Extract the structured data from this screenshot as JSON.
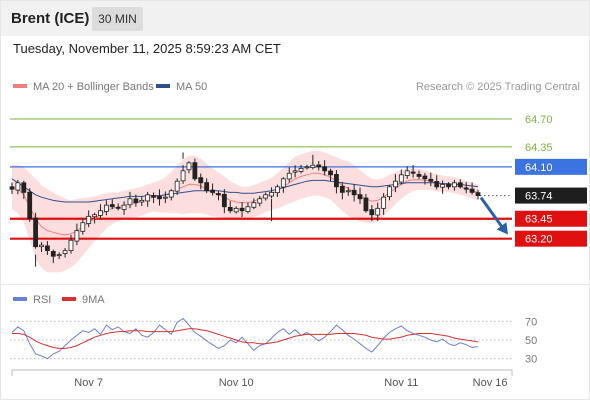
{
  "header": {
    "title": "Brent (ICE)",
    "interval": "30 MIN",
    "datetime": "Tuesday, November 11, 2025 8:59:23 AM CET"
  },
  "legend": {
    "ma20": "MA 20 + Bollinger Bands",
    "ma50": "MA 50",
    "copyright": "Research © 2025 Trading Central",
    "rsi": "RSI",
    "ma9": "9MA"
  },
  "colors": {
    "ma20": "#f08080",
    "bands": "#fcdede",
    "ma50": "#2f4f8f",
    "resistance": "#7cb342",
    "pivot": "#3b73e0",
    "support": "#e01010",
    "arrow": "#2a5faa",
    "rsi": "#6a7fd8",
    "rsi_ma": "#d83030"
  },
  "chart_data": [
    {
      "type": "candlestick",
      "ylim": [
        62.72,
        64.95
      ],
      "current_price": 63.74,
      "levels": [
        {
          "label": "64.70",
          "value": 64.7,
          "kind": "resistance"
        },
        {
          "label": "64.35",
          "value": 64.35,
          "kind": "resistance"
        },
        {
          "label": "64.10",
          "value": 64.1,
          "kind": "pivot"
        },
        {
          "label": "63.74",
          "value": 63.74,
          "kind": "current"
        },
        {
          "label": "63.45",
          "value": 63.45,
          "kind": "support"
        },
        {
          "label": "63.20",
          "value": 63.2,
          "kind": "support"
        }
      ],
      "close_path": [
        63.82,
        63.9,
        63.78,
        63.45,
        63.1,
        63.12,
        63.05,
        62.98,
        63.0,
        63.05,
        63.18,
        63.3,
        63.4,
        63.48,
        63.5,
        63.55,
        63.62,
        63.6,
        63.58,
        63.62,
        63.7,
        63.65,
        63.68,
        63.75,
        63.72,
        63.7,
        63.72,
        63.8,
        63.92,
        64.05,
        64.15,
        63.95,
        63.9,
        63.8,
        63.78,
        63.75,
        63.6,
        63.55,
        63.58,
        63.55,
        63.6,
        63.65,
        63.7,
        63.75,
        63.78,
        63.85,
        63.95,
        64.02,
        64.05,
        64.08,
        64.1,
        64.12,
        64.1,
        64.05,
        64.0,
        63.85,
        63.78,
        63.8,
        63.75,
        63.7,
        63.55,
        63.5,
        63.58,
        63.72,
        63.85,
        63.92,
        64.0,
        64.05,
        64.02,
        63.98,
        63.95,
        63.92,
        63.85,
        63.88,
        63.85,
        63.9,
        63.85,
        63.82,
        63.78,
        63.74
      ],
      "ma20": [
        63.85,
        63.82,
        63.75,
        63.6,
        63.45,
        63.35,
        63.3,
        63.28,
        63.26,
        63.25,
        63.26,
        63.3,
        63.35,
        63.4,
        63.45,
        63.5,
        63.55,
        63.58,
        63.6,
        63.62,
        63.64,
        63.65,
        63.67,
        63.7,
        63.72,
        63.73,
        63.75,
        63.78,
        63.82,
        63.85,
        63.88,
        63.88,
        63.86,
        63.82,
        63.78,
        63.75,
        63.72,
        63.68,
        63.66,
        63.65,
        63.65,
        63.67,
        63.7,
        63.73,
        63.76,
        63.8,
        63.85,
        63.9,
        63.95,
        63.98,
        64.0,
        64.02,
        64.02,
        64.0,
        63.97,
        63.92,
        63.87,
        63.83,
        63.78,
        63.74,
        63.7,
        63.67,
        63.68,
        63.72,
        63.78,
        63.83,
        63.88,
        63.92,
        63.94,
        63.94,
        63.93,
        63.92,
        63.9,
        63.89,
        63.88,
        63.87,
        63.85,
        63.83,
        63.8,
        63.78
      ],
      "bb_width": [
        0.28,
        0.3,
        0.35,
        0.42,
        0.5,
        0.52,
        0.52,
        0.5,
        0.48,
        0.45,
        0.42,
        0.4,
        0.36,
        0.32,
        0.28,
        0.25,
        0.22,
        0.2,
        0.18,
        0.18,
        0.18,
        0.18,
        0.18,
        0.18,
        0.18,
        0.2,
        0.22,
        0.26,
        0.3,
        0.34,
        0.36,
        0.36,
        0.34,
        0.32,
        0.3,
        0.28,
        0.26,
        0.24,
        0.22,
        0.2,
        0.2,
        0.2,
        0.2,
        0.2,
        0.2,
        0.22,
        0.24,
        0.26,
        0.28,
        0.28,
        0.28,
        0.28,
        0.28,
        0.28,
        0.28,
        0.3,
        0.32,
        0.34,
        0.34,
        0.32,
        0.3,
        0.28,
        0.26,
        0.24,
        0.22,
        0.2,
        0.18,
        0.16,
        0.14,
        0.13,
        0.12,
        0.11,
        0.11,
        0.1,
        0.1,
        0.1,
        0.1,
        0.1,
        0.1,
        0.1
      ],
      "ma50": [
        63.95,
        63.9,
        63.85,
        63.8,
        63.75,
        63.72,
        63.7,
        63.68,
        63.67,
        63.66,
        63.66,
        63.66,
        63.66,
        63.66,
        63.67,
        63.68,
        63.69,
        63.7,
        63.71,
        63.72,
        63.73,
        63.73,
        63.73,
        63.74,
        63.74,
        63.74,
        63.75,
        63.76,
        63.77,
        63.78,
        63.79,
        63.8,
        63.8,
        63.8,
        63.8,
        63.8,
        63.79,
        63.78,
        63.78,
        63.77,
        63.77,
        63.77,
        63.78,
        63.79,
        63.8,
        63.82,
        63.84,
        63.86,
        63.88,
        63.9,
        63.92,
        63.93,
        63.93,
        63.93,
        63.92,
        63.91,
        63.9,
        63.89,
        63.88,
        63.87,
        63.86,
        63.85,
        63.85,
        63.86,
        63.87,
        63.88,
        63.89,
        63.9,
        63.9,
        63.9,
        63.9,
        63.9,
        63.9,
        63.89,
        63.89,
        63.88,
        63.88,
        63.87,
        63.86,
        63.85
      ]
    },
    {
      "type": "line",
      "ylim": [
        20,
        80
      ],
      "yticks": [
        70,
        50,
        30
      ],
      "series": [
        {
          "name": "RSI",
          "values": [
            58,
            64,
            60,
            46,
            35,
            33,
            30,
            35,
            38,
            44,
            50,
            55,
            60,
            58,
            62,
            56,
            66,
            61,
            64,
            59,
            57,
            62,
            55,
            53,
            58,
            66,
            61,
            56,
            69,
            73,
            66,
            58,
            54,
            49,
            45,
            41,
            44,
            50,
            47,
            53,
            46,
            39,
            44,
            46,
            52,
            58,
            62,
            56,
            61,
            55,
            58,
            54,
            49,
            53,
            59,
            66,
            61,
            55,
            51,
            46,
            41,
            37,
            44,
            52,
            58,
            62,
            65,
            60,
            57,
            55,
            53,
            50,
            48,
            51,
            46,
            44,
            47,
            45,
            42,
            43
          ]
        },
        {
          "name": "9MA",
          "values": [
            57,
            57,
            56,
            53,
            49,
            46,
            44,
            42,
            41,
            41,
            42,
            44,
            47,
            50,
            53,
            55,
            57,
            58,
            59,
            59,
            60,
            60,
            60,
            59,
            59,
            59,
            59,
            59,
            60,
            61,
            62,
            62,
            61,
            60,
            58,
            56,
            54,
            52,
            50,
            48,
            47,
            47,
            46,
            46,
            47,
            48,
            50,
            52,
            54,
            55,
            56,
            56,
            56,
            56,
            56,
            57,
            57,
            57,
            57,
            56,
            55,
            53,
            52,
            51,
            51,
            52,
            53,
            55,
            56,
            57,
            57,
            57,
            56,
            55,
            54,
            52,
            51,
            50,
            49,
            48
          ]
        }
      ]
    }
  ],
  "xaxis": {
    "labels": [
      {
        "text": "Nov 7",
        "index": 13
      },
      {
        "text": "Nov 10",
        "index": 38
      },
      {
        "text": "Nov 11",
        "index": 66
      },
      {
        "text": "Nov 16",
        "index": 78
      }
    ]
  }
}
